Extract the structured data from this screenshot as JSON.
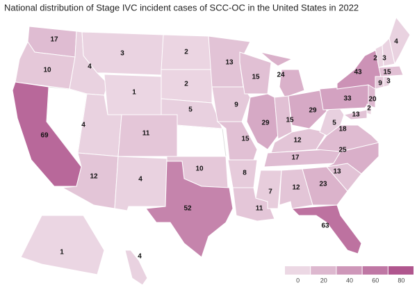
{
  "chart_data": {
    "type": "choropleth",
    "title": "National distribution of Stage IVC incident cases of SCC-OC in the United States in 2022",
    "values": [
      17,
      10,
      69,
      4,
      3,
      1,
      4,
      11,
      12,
      4,
      2,
      2,
      5,
      10,
      52,
      13,
      9,
      15,
      8,
      11,
      15,
      29,
      24,
      15,
      29,
      12,
      17,
      7,
      12,
      23,
      63,
      13,
      25,
      18,
      5,
      33,
      43,
      2,
      3,
      4,
      15,
      9,
      3,
      20,
      2,
      13,
      1,
      4
    ],
    "low_color": "#ecd8e4",
    "high_color": "#b0568e",
    "lim": [
      0,
      80
    ],
    "ticks": [
      0,
      20,
      40,
      60,
      80
    ]
  }
}
